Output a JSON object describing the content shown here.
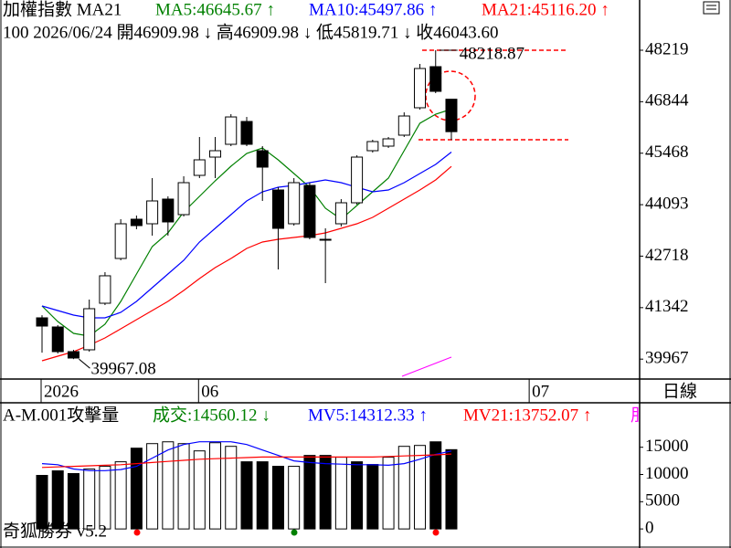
{
  "chart_data": [
    {
      "type": "candlestick",
      "title": "加權指數 MA21",
      "indicator_labels": [
        {
          "text": "MA5:46645.67 ↑",
          "color": "#008000"
        },
        {
          "text": "MA10:45497.86 ↑",
          "color": "#0000ff"
        },
        {
          "text": "MA21:45116.20 ↑",
          "color": "#ff0000"
        }
      ],
      "info_line": "100 2026/06/24 開46909.98 ↓ 高46909.98 ↓ 低45819.71 ↓ 收46043.60",
      "annotations": [
        "48218.87",
        "39967.08"
      ],
      "categories": [
        "2026",
        null,
        null,
        null,
        null,
        null,
        null,
        null,
        null,
        null,
        "06",
        null,
        null,
        null,
        null,
        null,
        null,
        null,
        null,
        null,
        null,
        null,
        null,
        null,
        null,
        null,
        null,
        null,
        null,
        null,
        null,
        "07",
        null,
        null,
        null,
        null,
        null,
        null
      ],
      "open": [
        41070,
        40826,
        40167,
        40216,
        41460,
        42656,
        43705,
        43583,
        44242,
        43827,
        44876,
        45364,
        45706,
        46316,
        45535,
        44486,
        43583,
        44608,
        43168,
        43583,
        44144,
        45535,
        45657,
        45950,
        46682,
        47780,
        46909.98,
        null,
        null,
        null,
        null,
        null,
        null,
        null,
        null,
        null,
        null,
        null
      ],
      "high": [
        41140,
        40875,
        40216,
        41558,
        42290,
        43705,
        43803,
        44803,
        44315,
        44852,
        45901,
        45901,
        46511,
        46437,
        45657,
        44559,
        44803,
        44681,
        43461,
        44242,
        45413,
        45828,
        45901,
        46560,
        47853,
        48218.87,
        46909.98,
        null,
        null,
        null,
        null,
        null,
        null,
        null,
        null,
        null,
        null,
        null
      ],
      "low": [
        40140,
        40118,
        39967.08,
        40167,
        41411,
        42607,
        43437,
        43266,
        43266,
        43778,
        44803,
        44803,
        45657,
        45657,
        44193,
        42363,
        43534,
        43168,
        41997,
        43510,
        44095,
        45486,
        45608,
        45901,
        46633,
        47072,
        45819.71,
        null,
        null,
        null,
        null,
        null,
        null,
        null,
        null,
        null,
        null,
        null
      ],
      "close": [
        40850,
        40167,
        39996,
        41314,
        42193,
        43583,
        43534,
        44193,
        43632,
        44681,
        45291,
        45535,
        46437,
        45706,
        45096,
        43461,
        44681,
        43217,
        43144,
        44144,
        45364,
        45779,
        45852,
        46462,
        47731,
        47121,
        46043.6,
        null,
        null,
        null,
        null,
        null,
        null,
        null,
        null,
        null,
        null,
        null
      ],
      "rise_color": "#ffffff",
      "fall_color": "#000000",
      "lines": [
        {
          "color": "#008000",
          "values": [
            41387,
            40972,
            40655,
            40582,
            40899,
            41509,
            42241,
            42973,
            43339,
            43900,
            44315,
            44730,
            45120,
            45462,
            45609,
            45291,
            44925,
            44559,
            43998,
            43705,
            44071,
            44437,
            44803,
            45535,
            46267,
            46511,
            46645.67,
            null,
            null,
            null,
            null,
            null,
            null,
            null,
            null,
            null,
            null,
            null
          ]
        },
        {
          "color": "#0000ff",
          "values": [
            41387,
            41265,
            41143,
            41070,
            41070,
            41216,
            41509,
            41875,
            42241,
            42607,
            43095,
            43461,
            43827,
            44193,
            44437,
            44559,
            44608,
            44681,
            44754,
            44681,
            44559,
            44437,
            44486,
            44681,
            44925,
            45169,
            45497.86,
            null,
            null,
            null,
            null,
            null,
            null,
            null,
            null,
            null,
            null,
            null
          ]
        },
        {
          "color": "#ff0000",
          "values": [
            39923,
            40045,
            40167,
            40338,
            40533,
            40777,
            41021,
            41265,
            41509,
            41802,
            42119,
            42412,
            42656,
            42924,
            43095,
            43168,
            43217,
            43266,
            43339,
            43461,
            43583,
            43754,
            43998,
            44242,
            44486,
            44754,
            45116.2,
            null,
            null,
            null,
            null,
            null,
            null,
            null,
            null,
            null,
            null,
            null
          ]
        }
      ],
      "ylim": [
        39435,
        49561
      ],
      "yticks": [
        48219,
        46844,
        45468,
        44093,
        42718,
        41342,
        39967
      ]
    },
    {
      "type": "bar",
      "title": "A-M.001攻擊量",
      "indicator_labels": [
        {
          "text": "成交:14560.12 ↓",
          "color": "#008000"
        },
        {
          "text": "MV5:14312.33 ↑",
          "color": "#0000ff"
        },
        {
          "text": "MV21:13752.07 ↑",
          "color": "#ff0000"
        },
        {
          "text": "朋",
          "color": "#ff00ff"
        }
      ],
      "values": [
        9833,
        10667,
        10167,
        11000,
        11500,
        12333,
        14833,
        15667,
        16000,
        15667,
        14333,
        15833,
        15167,
        12333,
        12333,
        11500,
        11500,
        13500,
        13500,
        13167,
        12333,
        11833,
        13167,
        15167,
        15333,
        16000,
        14560.12
      ],
      "colors": [
        "#000000",
        "#000000",
        "#000000",
        "#ffffff",
        "#ffffff",
        "#ffffff",
        "#000000",
        "#ffffff",
        "#ffffff",
        "#ffffff",
        "#ffffff",
        "#ffffff",
        "#ffffff",
        "#000000",
        "#000000",
        "#000000",
        "#ffffff",
        "#000000",
        "#000000",
        "#ffffff",
        "#000000",
        "#000000",
        "#ffffff",
        "#ffffff",
        "#ffffff",
        "#000000",
        "#000000"
      ],
      "lines": [
        {
          "color": "#0000ff",
          "values": [
            12000,
            11800,
            11000,
            10700,
            10700,
            10900,
            11500,
            13000,
            14500,
            15500,
            16000,
            16000,
            16000,
            15500,
            14500,
            13500,
            12500,
            12200,
            12000,
            11900,
            11800,
            11800,
            11700,
            12000,
            12800,
            13700,
            14312.33
          ]
        },
        {
          "color": "#ff0000",
          "values": [
            11300,
            11400,
            11500,
            11600,
            11700,
            11800,
            12000,
            12200,
            12400,
            12600,
            12800,
            12900,
            13000,
            13100,
            13200,
            13200,
            13200,
            13200,
            13200,
            13200,
            13200,
            13200,
            13300,
            13400,
            13500,
            13600,
            13752.07
          ]
        }
      ],
      "ylim": [
        -3500,
        23167
      ],
      "yticks": [
        15000,
        10000,
        5000,
        0
      ]
    }
  ],
  "period": "日線",
  "footer": "奇狐勝券 v5.2"
}
